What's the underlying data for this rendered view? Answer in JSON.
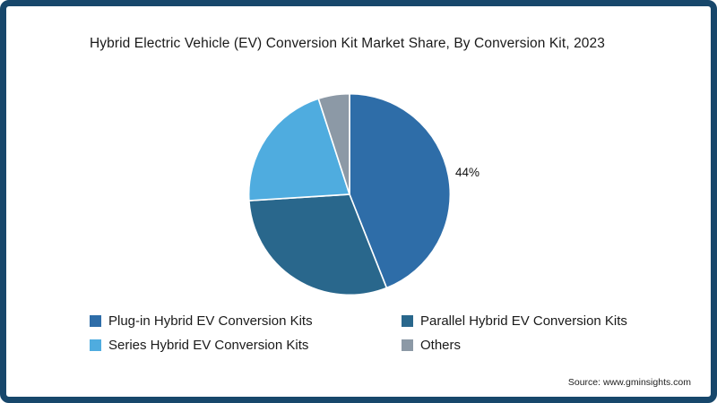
{
  "title": "Hybrid Electric Vehicle (EV) Conversion Kit Market Share, By Conversion Kit, 2023",
  "source": "Source: www.gminsights.com",
  "colors": {
    "frame": "#17476b",
    "background": "#ffffff",
    "text": "#1a1a1a"
  },
  "chart_data": {
    "type": "pie",
    "title": "Hybrid Electric Vehicle (EV) Conversion Kit Market Share, By Conversion Kit, 2023",
    "unit": "%",
    "start_angle_deg": 0,
    "direction": "clockwise",
    "legend_position": "bottom",
    "slices": [
      {
        "label": "Plug-in Hybrid EV Conversion Kits",
        "value": 44,
        "color": "#2e6da8",
        "data_label": "44%"
      },
      {
        "label": "Parallel Hybrid EV Conversion Kits",
        "value": 30,
        "color": "#29678c",
        "data_label": ""
      },
      {
        "label": "Series Hybrid EV Conversion Kits",
        "value": 21,
        "color": "#4facdf",
        "data_label": ""
      },
      {
        "label": "Others",
        "value": 5,
        "color": "#8c99a6",
        "data_label": ""
      }
    ],
    "shown_data_labels": [
      "44%"
    ]
  }
}
